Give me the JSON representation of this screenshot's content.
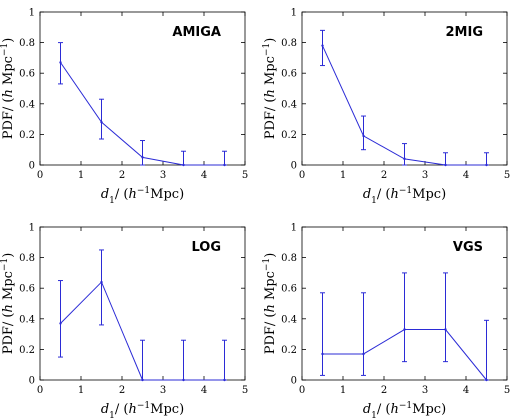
{
  "chart_data": [
    {
      "type": "line",
      "title": "AMIGA",
      "xlabel": "d1/ (h^-1 Mpc)",
      "ylabel": "PDF/ (h Mpc^-1)",
      "xlim": [
        0,
        5
      ],
      "ylim": [
        0,
        1
      ],
      "xticks": [
        "0",
        "1",
        "2",
        "3",
        "4",
        "5"
      ],
      "yticks": [
        "0",
        "0.2",
        "0.4",
        "0.6",
        "0.8",
        "1"
      ],
      "x": [
        0.5,
        1.5,
        2.5,
        3.5,
        4.5
      ],
      "y": [
        0.67,
        0.28,
        0.05,
        0.0,
        0.0
      ],
      "err_low": [
        0.53,
        0.17,
        0.0,
        0.0,
        0.0
      ],
      "err_high": [
        0.8,
        0.43,
        0.16,
        0.09,
        0.09
      ],
      "color": "#2b2bd6"
    },
    {
      "type": "line",
      "title": "2MIG",
      "xlabel": "d1/ (h^-1 Mpc)",
      "ylabel": "PDF/ (h Mpc^-1)",
      "xlim": [
        0,
        5
      ],
      "ylim": [
        0,
        1
      ],
      "xticks": [
        "0",
        "1",
        "2",
        "3",
        "4",
        "5"
      ],
      "yticks": [
        "0",
        "0.2",
        "0.4",
        "0.6",
        "0.8",
        "1"
      ],
      "x": [
        0.5,
        1.5,
        2.5,
        3.5,
        4.5
      ],
      "y": [
        0.78,
        0.19,
        0.04,
        0.0,
        0.0
      ],
      "err_low": [
        0.65,
        0.1,
        0.0,
        0.0,
        0.0
      ],
      "err_high": [
        0.88,
        0.32,
        0.14,
        0.08,
        0.08
      ],
      "color": "#2b2bd6"
    },
    {
      "type": "line",
      "title": "LOG",
      "xlabel": "d1/ (h^-1 Mpc)",
      "ylabel": "PDF/ (h Mpc^-1)",
      "xlim": [
        0,
        5
      ],
      "ylim": [
        0,
        1
      ],
      "xticks": [
        "0",
        "1",
        "2",
        "3",
        "4",
        "5"
      ],
      "yticks": [
        "0",
        "0.2",
        "0.4",
        "0.6",
        "0.8",
        "1"
      ],
      "x": [
        0.5,
        1.5,
        2.5,
        3.5,
        4.5
      ],
      "y": [
        0.37,
        0.64,
        0.0,
        0.0,
        0.0
      ],
      "err_low": [
        0.15,
        0.36,
        0.0,
        0.0,
        0.0
      ],
      "err_high": [
        0.65,
        0.85,
        0.26,
        0.26,
        0.26
      ],
      "color": "#2b2bd6"
    },
    {
      "type": "line",
      "title": "VGS",
      "xlabel": "d1/ (h^-1 Mpc)",
      "ylabel": "PDF/ (h Mpc^-1)",
      "xlim": [
        0,
        5
      ],
      "ylim": [
        0,
        1
      ],
      "xticks": [
        "0",
        "1",
        "2",
        "3",
        "4",
        "5"
      ],
      "yticks": [
        "0",
        "0.2",
        "0.4",
        "0.6",
        "0.8",
        "1"
      ],
      "x": [
        0.5,
        1.5,
        2.5,
        3.5,
        4.5
      ],
      "y": [
        0.17,
        0.17,
        0.33,
        0.33,
        0.0
      ],
      "err_low": [
        0.03,
        0.03,
        0.12,
        0.12,
        0.0
      ],
      "err_high": [
        0.57,
        0.57,
        0.7,
        0.7,
        0.39
      ],
      "color": "#2b2bd6"
    }
  ]
}
